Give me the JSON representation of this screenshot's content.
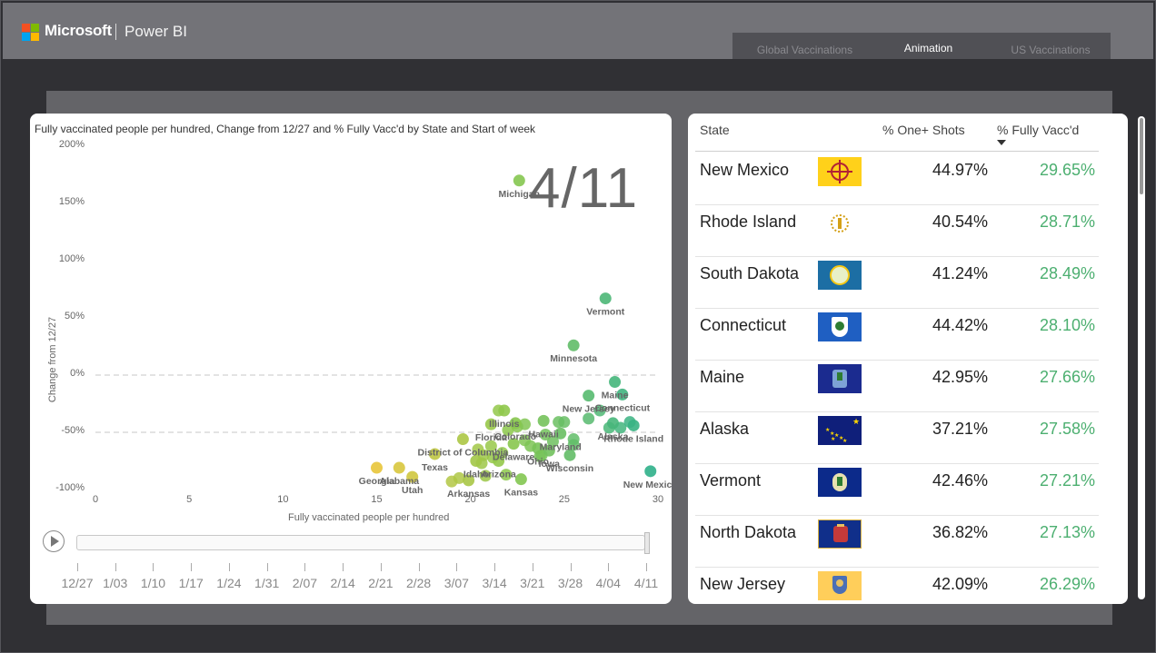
{
  "header": {
    "brand": "Microsoft",
    "product": "Power BI",
    "logo_colors": [
      "#f25022",
      "#7fba00",
      "#00a4ef",
      "#ffb900"
    ],
    "tabs": [
      {
        "label": "Global Vaccinations",
        "active": false
      },
      {
        "label": "Animation",
        "active": true
      },
      {
        "label": "US Vaccinations",
        "active": false
      }
    ]
  },
  "chart": {
    "title": "Fully vaccinated people per hundred, Change from 12/27 and % Fully Vacc'd by State and Start of week",
    "current_frame": "4/11",
    "timeline": [
      "12/27",
      "1/03",
      "1/10",
      "1/17",
      "1/24",
      "1/31",
      "2/07",
      "2/14",
      "2/21",
      "2/28",
      "3/07",
      "3/14",
      "3/21",
      "3/28",
      "4/04",
      "4/11"
    ]
  },
  "chart_data": {
    "type": "scatter",
    "xlabel": "Fully vaccinated people per hundred",
    "ylabel": "Change from 12/27",
    "x_ticks": [
      0,
      5,
      10,
      15,
      20,
      25,
      30
    ],
    "y_ticks": [
      "200%",
      "150%",
      "100%",
      "50%",
      "0%",
      "-50%",
      "-100%"
    ],
    "xlim": [
      0,
      30
    ],
    "ylim": [
      -100,
      200
    ],
    "color_scale": {
      "low": "#e8c53a",
      "mid": "#8cc84b",
      "high": "#2fb08a"
    },
    "labeled_points": [
      {
        "name": "Michigan",
        "x": 22.6,
        "y": 170
      },
      {
        "name": "Vermont",
        "x": 27.2,
        "y": 67
      },
      {
        "name": "Minnesota",
        "x": 25.5,
        "y": 26
      },
      {
        "name": "Maine",
        "x": 27.7,
        "y": -6
      },
      {
        "name": "New Jersey",
        "x": 26.3,
        "y": -18
      },
      {
        "name": "Connecticut",
        "x": 28.1,
        "y": -17
      },
      {
        "name": "Illinois",
        "x": 21.8,
        "y": -31
      },
      {
        "name": "Hawaii",
        "x": 23.9,
        "y": -40
      },
      {
        "name": "Colorado",
        "x": 22.4,
        "y": -42
      },
      {
        "name": "Florida",
        "x": 21.1,
        "y": -43
      },
      {
        "name": "Alaska",
        "x": 27.6,
        "y": -42
      },
      {
        "name": "Maryland",
        "x": 24.8,
        "y": -51
      },
      {
        "name": "Rhode Island",
        "x": 28.7,
        "y": -44
      },
      {
        "name": "District of Columbia",
        "x": 19.6,
        "y": -56
      },
      {
        "name": "Delaware",
        "x": 22.3,
        "y": -60
      },
      {
        "name": "Ohio",
        "x": 23.6,
        "y": -64
      },
      {
        "name": "Iowa",
        "x": 24.2,
        "y": -66
      },
      {
        "name": "Texas",
        "x": 18.1,
        "y": -69
      },
      {
        "name": "Wisconsin",
        "x": 25.3,
        "y": -70
      },
      {
        "name": "Idaho",
        "x": 20.3,
        "y": -75
      },
      {
        "name": "Arizona",
        "x": 21.5,
        "y": -75
      },
      {
        "name": "Alabama",
        "x": 16.2,
        "y": -81
      },
      {
        "name": "New Mexico",
        "x": 29.6,
        "y": -84
      },
      {
        "name": "Utah",
        "x": 16.9,
        "y": -89
      },
      {
        "name": "Georgia",
        "x": 15.0,
        "y": -81
      },
      {
        "name": "Kansas",
        "x": 22.7,
        "y": -91
      },
      {
        "name": "Arkansas",
        "x": 19.9,
        "y": -92
      }
    ],
    "unlabeled_points": [
      [
        19.0,
        -93
      ],
      [
        19.4,
        -90
      ],
      [
        20.8,
        -88
      ],
      [
        21.9,
        -87
      ],
      [
        20.6,
        -77
      ],
      [
        21.2,
        -72
      ],
      [
        21.7,
        -68
      ],
      [
        20.4,
        -65
      ],
      [
        21.1,
        -62
      ],
      [
        22.9,
        -57
      ],
      [
        23.2,
        -62
      ],
      [
        23.8,
        -70
      ],
      [
        24.4,
        -58
      ],
      [
        25.5,
        -56
      ],
      [
        25.5,
        -61
      ],
      [
        24.0,
        -52
      ],
      [
        24.7,
        -41
      ],
      [
        25.0,
        -41
      ],
      [
        22.5,
        -45
      ],
      [
        21.5,
        -31
      ],
      [
        22.9,
        -43
      ],
      [
        23.7,
        -71
      ],
      [
        26.3,
        -38
      ],
      [
        27.4,
        -46
      ],
      [
        26.9,
        -31
      ],
      [
        28.0,
        -46
      ],
      [
        28.5,
        -41
      ],
      [
        22.0,
        -48
      ],
      [
        20.7,
        -70
      ]
    ]
  },
  "table": {
    "columns": [
      "State",
      "% One+ Shots",
      "% Fully Vacc'd"
    ],
    "sorted_by": "% Fully Vacc'd",
    "rows": [
      {
        "state": "New Mexico",
        "one": "44.97%",
        "full": "29.65%",
        "flag": "new-mexico-flag"
      },
      {
        "state": "Rhode Island",
        "one": "40.54%",
        "full": "28.71%",
        "flag": "rhode-island-flag"
      },
      {
        "state": "South Dakota",
        "one": "41.24%",
        "full": "28.49%",
        "flag": "south-dakota-flag"
      },
      {
        "state": "Connecticut",
        "one": "44.42%",
        "full": "28.10%",
        "flag": "connecticut-flag"
      },
      {
        "state": "Maine",
        "one": "42.95%",
        "full": "27.66%",
        "flag": "maine-flag"
      },
      {
        "state": "Alaska",
        "one": "37.21%",
        "full": "27.58%",
        "flag": "alaska-flag"
      },
      {
        "state": "Vermont",
        "one": "42.46%",
        "full": "27.21%",
        "flag": "vermont-flag"
      },
      {
        "state": "North Dakota",
        "one": "36.82%",
        "full": "27.13%",
        "flag": "north-dakota-flag"
      },
      {
        "state": "New Jersey",
        "one": "42.09%",
        "full": "26.29%",
        "flag": "new-jersey-flag"
      }
    ]
  }
}
